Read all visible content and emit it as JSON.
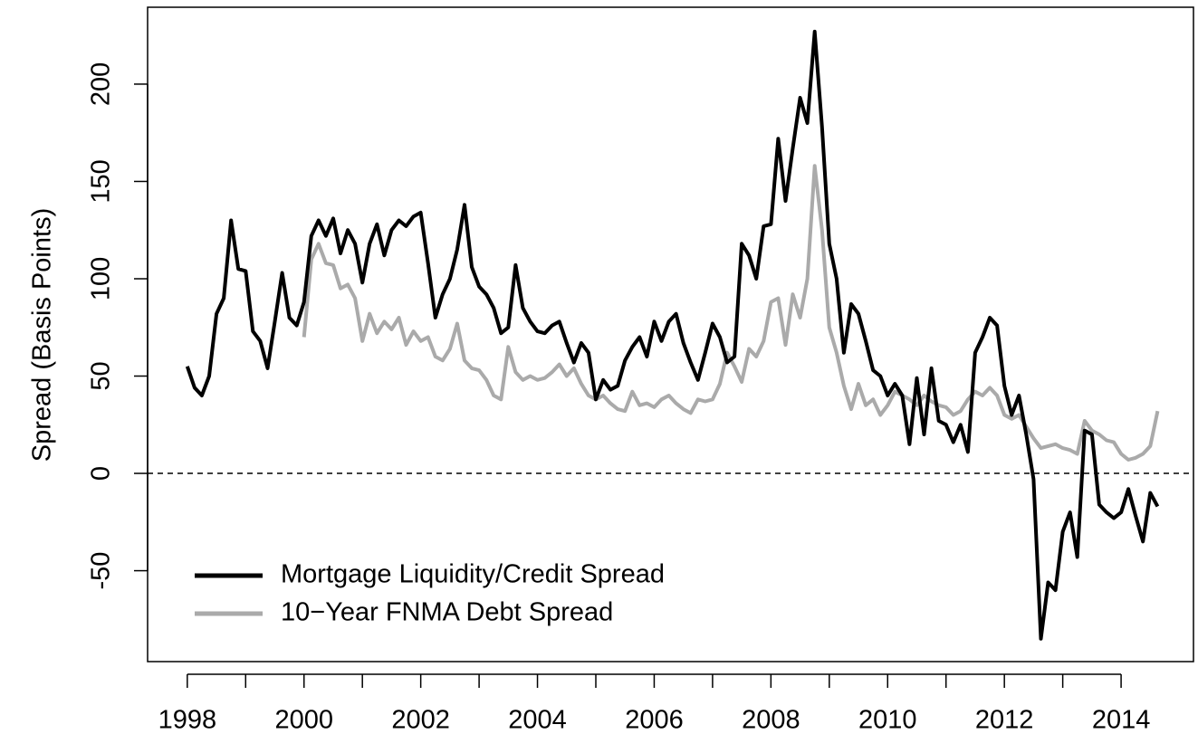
{
  "chart_data": {
    "type": "line",
    "y_label": "Spread (Basis Points)",
    "x": [
      1998,
      1998.125,
      1998.25,
      1998.375,
      1998.5,
      1998.625,
      1998.75,
      1998.875,
      1999,
      1999.125,
      1999.25,
      1999.375,
      1999.5,
      1999.625,
      1999.75,
      1999.875,
      2000,
      2000.125,
      2000.25,
      2000.375,
      2000.5,
      2000.625,
      2000.75,
      2000.875,
      2001,
      2001.125,
      2001.25,
      2001.375,
      2001.5,
      2001.625,
      2001.75,
      2001.875,
      2002,
      2002.125,
      2002.25,
      2002.375,
      2002.5,
      2002.625,
      2002.75,
      2002.875,
      2003,
      2003.125,
      2003.25,
      2003.375,
      2003.5,
      2003.625,
      2003.75,
      2003.875,
      2004,
      2004.125,
      2004.25,
      2004.375,
      2004.5,
      2004.625,
      2004.75,
      2004.875,
      2005,
      2005.125,
      2005.25,
      2005.375,
      2005.5,
      2005.625,
      2005.75,
      2005.875,
      2006,
      2006.125,
      2006.25,
      2006.375,
      2006.5,
      2006.625,
      2006.75,
      2006.875,
      2007,
      2007.125,
      2007.25,
      2007.375,
      2007.5,
      2007.625,
      2007.75,
      2007.875,
      2008,
      2008.125,
      2008.25,
      2008.375,
      2008.5,
      2008.625,
      2008.75,
      2008.875,
      2009,
      2009.125,
      2009.25,
      2009.375,
      2009.5,
      2009.625,
      2009.75,
      2009.875,
      2010,
      2010.125,
      2010.25,
      2010.375,
      2010.5,
      2010.625,
      2010.75,
      2010.875,
      2011,
      2011.125,
      2011.25,
      2011.375,
      2011.5,
      2011.625,
      2011.75,
      2011.875,
      2012,
      2012.125,
      2012.25,
      2012.375,
      2012.5,
      2012.625,
      2012.75,
      2012.875,
      2013,
      2013.125,
      2013.25,
      2013.375,
      2013.5,
      2013.625,
      2013.75,
      2013.875,
      2014,
      2014.125,
      2014.25,
      2014.375,
      2014.5,
      2014.625
    ],
    "series": [
      {
        "name": "Mortgage Liquidity/Credit Spread",
        "color": "#000000",
        "values": [
          55,
          44,
          40,
          50,
          82,
          90,
          130,
          105,
          104,
          73,
          68,
          54,
          78,
          103,
          80,
          76,
          88,
          122,
          130,
          122,
          131,
          113,
          125,
          118,
          98,
          118,
          128,
          112,
          125,
          130,
          127,
          132,
          134,
          108,
          80,
          92,
          100,
          115,
          138,
          106,
          96,
          92,
          85,
          72,
          75,
          107,
          85,
          78,
          73,
          72,
          76,
          78,
          67,
          57,
          67,
          62,
          38,
          48,
          43,
          45,
          58,
          65,
          70,
          60,
          78,
          68,
          78,
          82,
          67,
          57,
          48,
          62,
          77,
          70,
          57,
          60,
          118,
          112,
          100,
          127,
          128,
          172,
          140,
          167,
          193,
          180,
          227,
          178,
          118,
          100,
          62,
          87,
          82,
          68,
          53,
          50,
          40,
          46,
          40,
          15,
          49,
          20,
          54,
          27,
          25,
          16,
          25,
          11,
          62,
          70,
          80,
          76,
          45,
          30,
          40,
          20,
          -3,
          -85,
          -56,
          -60,
          -30,
          -20,
          -43,
          22,
          20,
          -16,
          -20,
          -23,
          -20,
          -8,
          -22,
          -35,
          -10,
          -17
        ]
      },
      {
        "name": "10−Year FNMA Debt Spread",
        "color": "#aaaaaa",
        "values": [
          null,
          null,
          null,
          null,
          null,
          null,
          null,
          null,
          null,
          null,
          null,
          null,
          null,
          null,
          null,
          null,
          70,
          110,
          118,
          108,
          107,
          95,
          97,
          90,
          68,
          82,
          72,
          78,
          74,
          80,
          66,
          73,
          68,
          70,
          60,
          58,
          64,
          77,
          58,
          54,
          53,
          48,
          40,
          38,
          65,
          52,
          48,
          50,
          48,
          49,
          52,
          56,
          50,
          54,
          46,
          40,
          38,
          40,
          36,
          33,
          32,
          42,
          35,
          36,
          34,
          38,
          40,
          36,
          33,
          31,
          38,
          37,
          38,
          46,
          62,
          55,
          47,
          64,
          60,
          68,
          88,
          90,
          66,
          92,
          80,
          100,
          158,
          125,
          75,
          62,
          45,
          33,
          46,
          35,
          38,
          30,
          35,
          42,
          40,
          38,
          35,
          40,
          37,
          35,
          34,
          30,
          32,
          38,
          42,
          40,
          44,
          40,
          30,
          28,
          30,
          24,
          18,
          13,
          14,
          15,
          13,
          12,
          10,
          27,
          22,
          20,
          17,
          16,
          10,
          7,
          8,
          10,
          14,
          32
        ]
      }
    ],
    "xlim": [
      1997.32,
      2015.24
    ],
    "ylim": [
      -96.7,
      239.5
    ],
    "xticks": [
      1998,
      2000,
      2002,
      2004,
      2006,
      2008,
      2010,
      2012,
      2014
    ],
    "xminorticks": [
      1999,
      2001,
      2003,
      2005,
      2007,
      2009,
      2011,
      2013
    ],
    "yticks": [
      -50,
      0,
      50,
      100,
      150,
      200
    ],
    "reference_line": 0,
    "legend": "bottom-left"
  }
}
